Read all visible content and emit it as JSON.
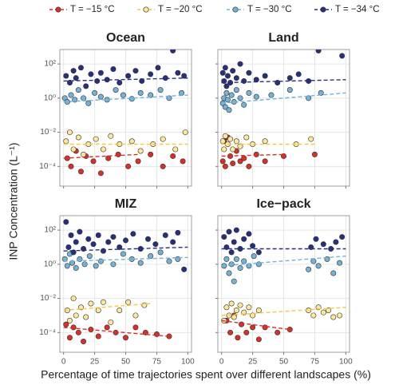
{
  "chart_data": [
    {
      "type": "scatter",
      "title": "Ocean",
      "log_y": true,
      "grid": true,
      "xlim": [
        -3,
        103
      ],
      "ylim": [
        7e-06,
        700
      ],
      "xticks": [
        0,
        25,
        50,
        75,
        100
      ],
      "yticks": [
        {
          "value": 100,
          "label": "10²"
        },
        {
          "value": 1,
          "label": "10⁰"
        },
        {
          "value": 0.01,
          "label": "10⁻²"
        },
        {
          "value": 0.0001,
          "label": "10⁻⁴"
        }
      ],
      "xlabel": "Percentage of time trajectories spent over different landscapes (%)",
      "ylabel": "INP Concentration (L⁻¹)",
      "series": [
        {
          "name": "T = −15 °C",
          "color": "#d73027",
          "line_color": "#d73027",
          "x": [
            3,
            6,
            10,
            14,
            18,
            24,
            30,
            36,
            44,
            52,
            60,
            70,
            80,
            88,
            96
          ],
          "values": [
            0.0003,
            0.0001,
            0.0008,
            5e-05,
            0.0004,
            0.0002,
            4e-05,
            0.0003,
            0.0005,
            0.0001,
            0.0002,
            0.0005,
            0.0001,
            0.0004,
            0.0002
          ],
          "trend_x": [
            0,
            60
          ],
          "trend_values": [
            0.0003,
            0.0005
          ]
        },
        {
          "name": "T = −20 °C",
          "color": "#fee79b",
          "line_color": "#f2c94c",
          "x": [
            2,
            5,
            8,
            12,
            16,
            20,
            26,
            32,
            38,
            45,
            55,
            62,
            72,
            80,
            90,
            98
          ],
          "values": [
            0.003,
            0.01,
            0.001,
            0.005,
            0.0005,
            0.002,
            0.004,
            0.001,
            0.006,
            0.002,
            0.003,
            0.0008,
            0.002,
            0.004,
            0.001,
            0.01
          ],
          "trend_x": [
            0,
            100
          ],
          "trend_values": [
            0.002,
            0.002
          ]
        },
        {
          "name": "T = −30 °C",
          "color": "#74b3d8",
          "line_color": "#74b3d8",
          "x": [
            1,
            3,
            6,
            9,
            12,
            16,
            20,
            25,
            30,
            35,
            42,
            48,
            55,
            62,
            70,
            78,
            85,
            95
          ],
          "values": [
            1,
            0.6,
            1.5,
            0.8,
            3,
            1,
            0.5,
            2,
            1.2,
            0.8,
            3,
            1.5,
            0.9,
            2,
            1.5,
            3,
            1,
            2
          ],
          "trend_x": [
            0,
            100
          ],
          "trend_values": [
            0.6,
            1.5
          ]
        },
        {
          "name": "T = −34 °C",
          "color": "#26307e",
          "line_color": "#26307e",
          "x": [
            2,
            5,
            8,
            10,
            14,
            18,
            22,
            27,
            30,
            35,
            40,
            45,
            52,
            58,
            63,
            70,
            76,
            82,
            88,
            92,
            97
          ],
          "values": [
            20,
            8,
            40,
            15,
            60,
            5,
            25,
            10,
            30,
            12,
            50,
            8,
            20,
            40,
            10,
            25,
            60,
            15,
            600,
            30,
            20
          ],
          "trend_x": [
            0,
            100
          ],
          "trend_values": [
            10,
            15
          ]
        }
      ]
    },
    {
      "type": "scatter",
      "title": "Land",
      "log_y": true,
      "grid": true,
      "xlim": [
        -3,
        103
      ],
      "ylim": [
        7e-06,
        700
      ],
      "xticks": [
        0,
        25,
        50,
        75,
        100
      ],
      "yticks": [
        {
          "value": 100,
          "label": "10²"
        },
        {
          "value": 1,
          "label": "10⁰"
        },
        {
          "value": 0.01,
          "label": "10⁻²"
        },
        {
          "value": 0.0001,
          "label": "10⁻⁴"
        }
      ],
      "series": [
        {
          "name": "T = −15 °C",
          "color": "#d73027",
          "line_color": "#d73027",
          "x": [
            1,
            2,
            3,
            5,
            7,
            9,
            12,
            15,
            18,
            22,
            28,
            35,
            50,
            75
          ],
          "values": [
            0.0002,
            0.003,
            0.0001,
            0.005,
            0.0004,
            0.00015,
            0.0008,
            0.0002,
            0.0003,
            0.0001,
            0.0005,
            0.0002,
            0.0004,
            0.0005
          ],
          "trend_x": [
            0,
            50
          ],
          "trend_values": [
            0.0004,
            0.0005
          ]
        },
        {
          "name": "T = −20 °C",
          "color": "#fee79b",
          "line_color": "#f2c94c",
          "x": [
            1,
            2,
            3,
            5,
            7,
            9,
            12,
            15,
            20,
            25,
            35,
            60,
            72
          ],
          "values": [
            0.003,
            0.001,
            0.006,
            0.002,
            0.004,
            0.001,
            0.003,
            0.0015,
            0.005,
            0.002,
            0.003,
            0.002,
            0.004
          ],
          "trend_x": [
            0,
            75
          ],
          "trend_values": [
            0.002,
            0.002
          ]
        },
        {
          "name": "T = −30 °C",
          "color": "#74b3d8",
          "line_color": "#74b3d8",
          "x": [
            1,
            2,
            3,
            4,
            5,
            6,
            8,
            10,
            12,
            15,
            18,
            22,
            28,
            40,
            55,
            70,
            80
          ],
          "values": [
            0.5,
            1,
            0.3,
            2,
            0.8,
            0.2,
            1.5,
            0.6,
            3,
            1,
            0.4,
            2,
            1.2,
            1.5,
            3,
            1,
            2
          ],
          "trend_x": [
            0,
            100
          ],
          "trend_values": [
            0.5,
            2
          ]
        },
        {
          "name": "T = −34 °C",
          "color": "#26307e",
          "line_color": "#26307e",
          "x": [
            1,
            2,
            3,
            4,
            5,
            7,
            9,
            12,
            15,
            18,
            22,
            28,
            35,
            45,
            55,
            62,
            70,
            78,
            97
          ],
          "values": [
            30,
            10,
            60,
            5,
            20,
            8,
            40,
            15,
            100,
            10,
            30,
            12,
            20,
            8,
            15,
            25,
            10,
            600,
            300
          ],
          "trend_x": [
            0,
            100
          ],
          "trend_values": [
            8,
            12
          ]
        }
      ]
    },
    {
      "type": "scatter",
      "title": "MIZ",
      "log_y": true,
      "grid": true,
      "xlim": [
        -3,
        103
      ],
      "ylim": [
        7e-06,
        700
      ],
      "xticks": [
        0,
        25,
        50,
        75,
        100
      ],
      "yticks": [
        {
          "value": 100,
          "label": "10²"
        },
        {
          "value": 1,
          "label": "10⁰"
        },
        {
          "value": 0.01,
          "label": "10⁻²"
        },
        {
          "value": 0.0001,
          "label": "10⁻⁴"
        }
      ],
      "series": [
        {
          "name": "T = −15 °C",
          "color": "#d73027",
          "line_color": "#d73027",
          "x": [
            2,
            5,
            8,
            12,
            16,
            22,
            28,
            35,
            42,
            50,
            58,
            66,
            75,
            85
          ],
          "values": [
            0.0003,
            5e-05,
            0.0002,
            0.0001,
            3e-05,
            0.00015,
            6e-05,
            0.0002,
            0.0001,
            5e-05,
            0.0002,
            0.0001,
            8e-05,
            6e-05
          ],
          "trend_x": [
            0,
            85
          ],
          "trend_values": [
            0.0002,
            6e-05
          ]
        },
        {
          "name": "T = −20 °C",
          "color": "#fee79b",
          "line_color": "#f2c94c",
          "x": [
            3,
            5,
            8,
            10,
            14,
            18,
            22,
            28,
            32,
            38,
            45,
            52,
            58,
            65
          ],
          "values": [
            0.002,
            0.0005,
            0.01,
            0.001,
            0.003,
            0.0008,
            0.005,
            0.002,
            0.006,
            0.0004,
            0.002,
            0.006,
            0.001,
            0.004
          ],
          "trend_x": [
            0,
            70
          ],
          "trend_values": [
            0.002,
            0.005
          ]
        },
        {
          "name": "T = −30 °C",
          "color": "#74b3d8",
          "line_color": "#74b3d8",
          "x": [
            1,
            3,
            5,
            7,
            10,
            13,
            17,
            21,
            26,
            30,
            40,
            48,
            55,
            62,
            70,
            78,
            85,
            92
          ],
          "values": [
            2,
            0.8,
            4,
            1.2,
            0.6,
            2,
            1,
            3,
            0.8,
            1.5,
            1,
            4,
            2,
            1.2,
            3,
            5,
            1.5,
            2
          ],
          "trend_x": [
            0,
            100
          ],
          "trend_values": [
            1.5,
            2.5
          ]
        },
        {
          "name": "T = −34 °C",
          "color": "#26307e",
          "line_color": "#26307e",
          "x": [
            2,
            4,
            6,
            8,
            10,
            13,
            16,
            20,
            24,
            28,
            32,
            36,
            40,
            45,
            50,
            56,
            62,
            68,
            74,
            82,
            88,
            92,
            97
          ],
          "values": [
            300,
            10,
            50,
            5,
            20,
            80,
            8,
            30,
            15,
            50,
            6,
            20,
            40,
            10,
            25,
            60,
            8,
            30,
            15,
            50,
            20,
            70,
            0.5
          ],
          "trend_x": [
            0,
            100
          ],
          "trend_values": [
            6,
            10
          ]
        }
      ]
    },
    {
      "type": "scatter",
      "title": "Ice−pack",
      "log_y": true,
      "grid": true,
      "xlim": [
        -3,
        103
      ],
      "ylim": [
        7e-06,
        700
      ],
      "xticks": [
        0,
        25,
        50,
        75,
        100
      ],
      "yticks": [
        {
          "value": 100,
          "label": "10²"
        },
        {
          "value": 1,
          "label": "10⁰"
        },
        {
          "value": 0.01,
          "label": "10⁻²"
        },
        {
          "value": 0.0001,
          "label": "10⁻⁴"
        }
      ],
      "series": [
        {
          "name": "T = −15 °C",
          "color": "#d73027",
          "line_color": "#d73027",
          "x": [
            4,
            7,
            10,
            13,
            16,
            20,
            25,
            30,
            35,
            45,
            55
          ],
          "values": [
            0.0005,
            0.0001,
            0.001,
            5e-05,
            0.0003,
            0.0001,
            0.0002,
            4e-05,
            0.0002,
            0.0001,
            0.00015
          ],
          "trend_x": [
            0,
            55
          ],
          "trend_values": [
            0.0005,
            0.00015
          ]
        },
        {
          "name": "T = −20 °C",
          "color": "#fee79b",
          "line_color": "#f2c94c",
          "x": [
            2,
            4,
            6,
            8,
            10,
            12,
            15,
            18,
            22,
            25,
            30,
            70,
            74,
            78,
            82,
            86,
            90,
            95
          ],
          "values": [
            0.0005,
            0.003,
            0.001,
            0.005,
            0.0008,
            0.002,
            0.004,
            0.0015,
            0.003,
            0.001,
            0.002,
            0.002,
            0.001,
            0.003,
            0.0015,
            0.002,
            0.0008,
            0.001
          ],
          "trend_x": [
            0,
            100
          ],
          "trend_values": [
            0.001,
            0.003
          ]
        },
        {
          "name": "T = −30 °C",
          "color": "#74b3d8",
          "line_color": "#74b3d8",
          "x": [
            2,
            4,
            6,
            8,
            10,
            12,
            15,
            18,
            22,
            26,
            30,
            70,
            74,
            78,
            85,
            90,
            95
          ],
          "values": [
            0.8,
            2,
            0.3,
            1,
            0.1,
            2,
            0.6,
            1.5,
            0.8,
            3,
            1,
            0.5,
            1.5,
            0.8,
            2,
            0.3,
            1.2
          ],
          "trend_x": [
            0,
            100
          ],
          "trend_values": [
            0.8,
            3
          ]
        },
        {
          "name": "T = −34 °C",
          "color": "#26307e",
          "line_color": "#26307e",
          "x": [
            2,
            4,
            6,
            8,
            10,
            12,
            15,
            18,
            22,
            25,
            30,
            72,
            76,
            82,
            88,
            92,
            97
          ],
          "values": [
            40,
            10,
            80,
            5,
            20,
            100,
            8,
            30,
            60,
            12,
            5,
            10,
            30,
            15,
            8,
            20,
            40
          ],
          "trend_x": [
            0,
            100
          ],
          "trend_values": [
            8,
            8
          ]
        }
      ]
    }
  ]
}
